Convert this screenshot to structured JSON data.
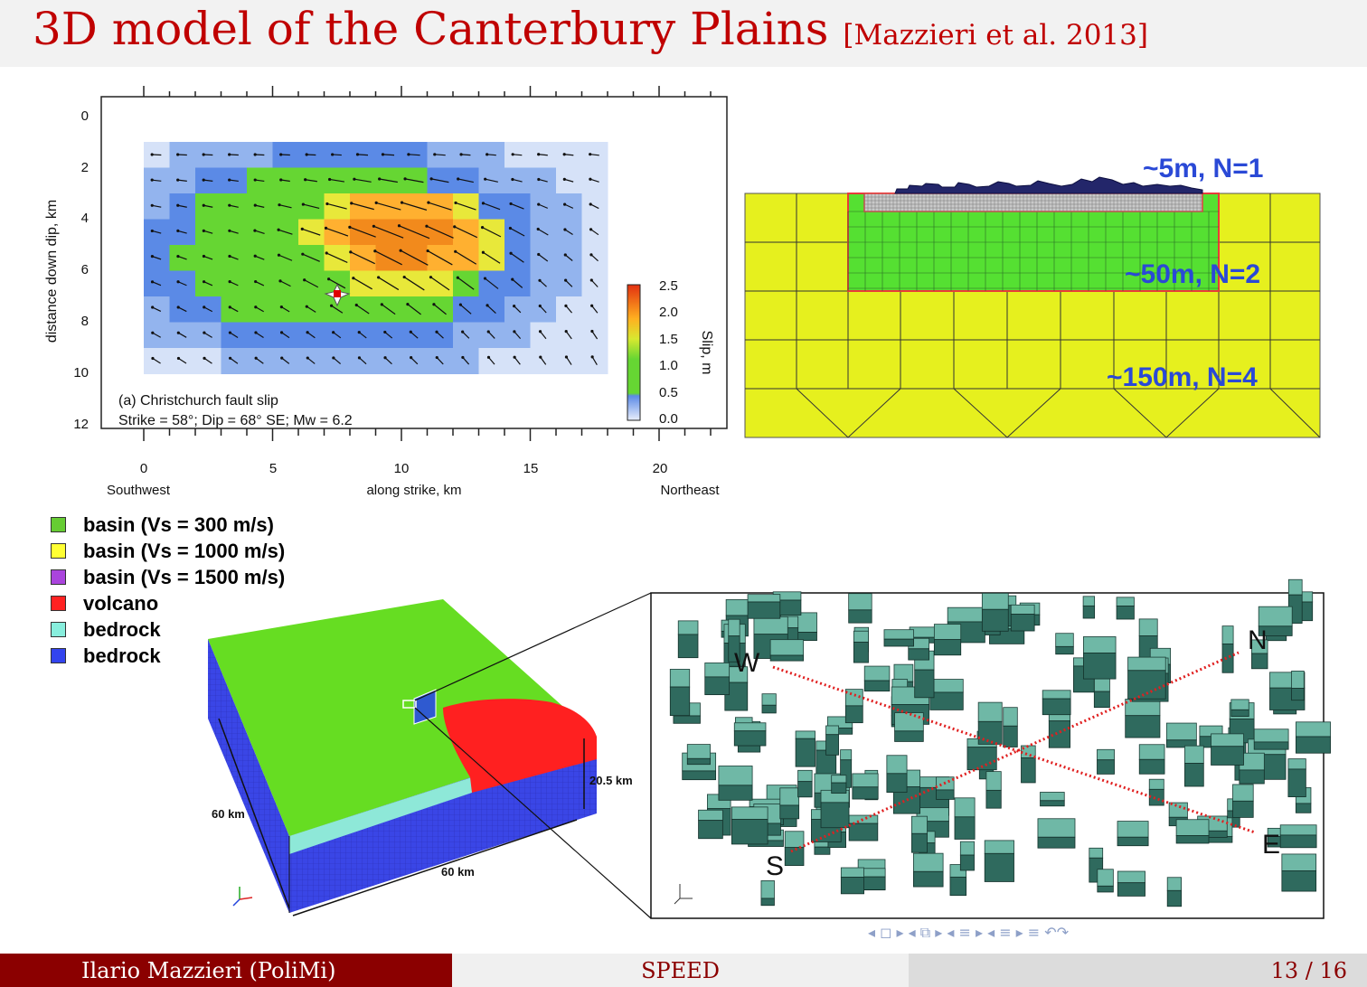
{
  "slide": {
    "title": "3D model of the Canterbury Plains",
    "citation": "[Mazzieri et al. 2013]"
  },
  "fault_panel": {
    "ylabel": "distance down dip, km",
    "y_ticks": [
      "0",
      "2",
      "4",
      "6",
      "8",
      "10",
      "12"
    ],
    "x_ticks": [
      "0",
      "5",
      "10",
      "15",
      "20"
    ],
    "x_left_label": "Southwest",
    "xlabel": "along strike, km",
    "x_right_label": "Northeast",
    "caption_line1": "(a) Christchurch fault slip",
    "caption_line2": "Strike = 58°; Dip = 68° SE; Mw = 6.2",
    "colorbar_ticks": [
      "2.5",
      "2.0",
      "1.5",
      "1.0",
      "0.5",
      "0.0"
    ],
    "colorbar_label": "Slip, m"
  },
  "mesh_panel": {
    "label_top": "~5m, N=1",
    "label_mid": "~50m, N=2",
    "label_bottom": "~150m, N=4"
  },
  "legend": [
    {
      "label": "basin (Vs = 300 m/s)",
      "color": "#66cc33"
    },
    {
      "label": "basin (Vs = 1000 m/s)",
      "color": "#ffff33"
    },
    {
      "label": "basin (Vs = 1500 m/s)",
      "color": "#aa44dd"
    },
    {
      "label": "volcano",
      "color": "#ff2222"
    },
    {
      "label": "bedrock",
      "color": "#88eedd"
    },
    {
      "label": "bedrock",
      "color": "#3344ee"
    }
  ],
  "model_panel": {
    "dim_height": "20.5 km",
    "dim_left": "60 km",
    "dim_front": "60 km"
  },
  "city_panel": {
    "dir_w": "W",
    "dir_n": "N",
    "dir_s": "S",
    "dir_e": "E"
  },
  "footer": {
    "author": "Ilario Mazzieri  (PoliMi)",
    "talk": "SPEED",
    "page": "13 / 16"
  },
  "nav_symbols": "◂ ◻ ▸   ◂ ⧉ ▸   ◂ ≡ ▸   ◂ ≡ ▸    ≡    ↶↷"
}
